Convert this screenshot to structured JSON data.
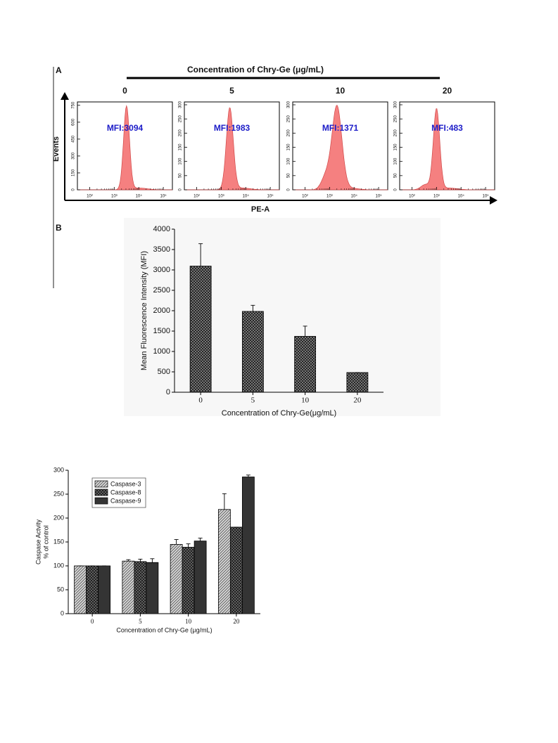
{
  "panel_a": {
    "label": "A",
    "title": "Concentration of Chry-Ge (μg/mL)",
    "y_label": "Events",
    "x_label": "PE-A",
    "xlim": [
      1.5,
      5.37
    ],
    "xticks": [
      {
        "value": 2,
        "label": "10²"
      },
      {
        "value": 3,
        "label": "10³"
      },
      {
        "value": 4,
        "label": "10⁴"
      },
      {
        "value": 5,
        "label": "10⁵"
      }
    ],
    "panels": [
      {
        "concentration": "0",
        "mfi_label": "MFI:3094",
        "ylim": [
          0,
          780
        ],
        "yticks": [
          0,
          150,
          300,
          450,
          600,
          750
        ]
      },
      {
        "concentration": "5",
        "mfi_label": "MFI:1983",
        "ylim": [
          0,
          310
        ],
        "yticks": [
          0,
          50,
          100,
          150,
          200,
          250,
          300
        ]
      },
      {
        "concentration": "10",
        "mfi_label": "MFI:1371",
        "ylim": [
          0,
          310
        ],
        "yticks": [
          0,
          50,
          100,
          150,
          200,
          250,
          300
        ]
      },
      {
        "concentration": "20",
        "mfi_label": "MFI:483",
        "ylim": [
          0,
          310
        ],
        "yticks": [
          0,
          50,
          100,
          150,
          200,
          250,
          300
        ]
      }
    ]
  },
  "chart_data": [
    {
      "type": "bar",
      "panel_label": "B",
      "x_label": "Concentration of Chry-Ge(μg/mL)",
      "y_label": [
        "Mean Fluorescence Intensity (MFI)"
      ],
      "categories": [
        "0",
        "5",
        "10",
        "20"
      ],
      "values": [
        3094,
        1983,
        1371,
        483
      ],
      "errors": [
        550,
        150,
        250,
        0
      ],
      "color": "#8a8a8a",
      "pattern": "grid",
      "ylim": [
        0,
        4000
      ],
      "yticks": [
        0,
        500,
        1000,
        1500,
        2000,
        2500,
        3000,
        3500,
        4000
      ]
    },
    {
      "type": "bar",
      "x_label": "Concentration of Chry-Ge (μg/mL)",
      "y_label": [
        "Caspase Actvity",
        "% of control"
      ],
      "categories": [
        "0",
        "5",
        "10",
        "20"
      ],
      "series": [
        {
          "name": "Caspase-3",
          "color": "#d8d8d8",
          "pattern": "diagonal",
          "values": [
            100,
            110,
            145,
            218
          ],
          "errors": [
            0,
            3,
            10,
            33
          ]
        },
        {
          "name": "Caspase-8",
          "color": "#707070",
          "pattern": "grid",
          "values": [
            100,
            109,
            139,
            181
          ],
          "errors": [
            0,
            5,
            7,
            0
          ]
        },
        {
          "name": "Caspase-9",
          "color": "#4a4a4a",
          "pattern": "horizontal",
          "values": [
            100,
            107,
            152,
            286
          ],
          "errors": [
            0,
            8,
            6,
            4
          ]
        }
      ],
      "legend": "top-left",
      "ylim": [
        0,
        300
      ],
      "yticks": [
        0,
        50,
        100,
        150,
        200,
        250,
        300
      ]
    }
  ]
}
